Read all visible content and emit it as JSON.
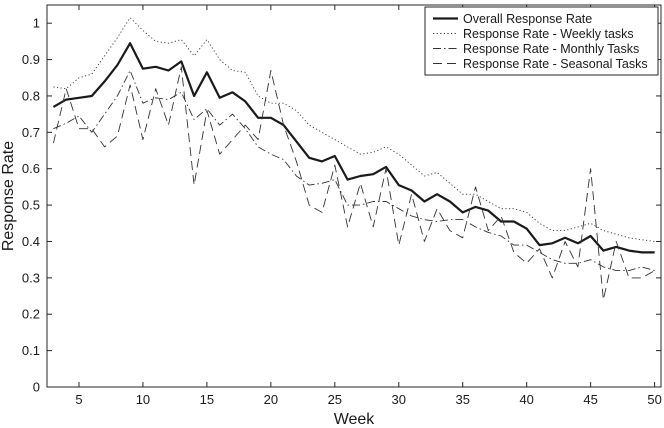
{
  "chart_data": {
    "type": "line",
    "xlabel": "Week",
    "ylabel": "Response Rate",
    "xlim": [
      2.5,
      50.5
    ],
    "ylim": [
      0,
      1.05
    ],
    "xticks": [
      5,
      10,
      15,
      20,
      25,
      30,
      35,
      40,
      45,
      50
    ],
    "yticks": [
      0,
      0.1,
      0.2,
      0.3,
      0.4,
      0.5,
      0.6,
      0.7,
      0.8,
      0.9,
      1
    ],
    "ytick_labels": [
      "0",
      "0.1",
      "0.2",
      "0.3",
      "0.4",
      "0.5",
      "0.6",
      "0.7",
      "0.8",
      "0.9",
      "1"
    ],
    "grid": false,
    "legend_position": "top-right",
    "x": [
      3,
      4,
      5,
      6,
      7,
      8,
      9,
      10,
      11,
      12,
      13,
      14,
      15,
      16,
      17,
      18,
      19,
      20,
      21,
      22,
      23,
      24,
      25,
      26,
      27,
      28,
      29,
      30,
      31,
      32,
      33,
      34,
      35,
      36,
      37,
      38,
      39,
      40,
      41,
      42,
      43,
      44,
      45,
      46,
      47,
      48,
      49,
      50
    ],
    "series": [
      {
        "name": "Overall Response Rate",
        "style": "solid",
        "color": "#1a1a1a",
        "values": [
          0.77,
          0.79,
          0.795,
          0.8,
          0.84,
          0.885,
          0.945,
          0.875,
          0.88,
          0.87,
          0.895,
          0.8,
          0.865,
          0.795,
          0.81,
          0.785,
          0.74,
          0.74,
          0.72,
          0.675,
          0.63,
          0.62,
          0.635,
          0.57,
          0.58,
          0.585,
          0.605,
          0.555,
          0.54,
          0.51,
          0.53,
          0.51,
          0.48,
          0.495,
          0.485,
          0.455,
          0.455,
          0.435,
          0.39,
          0.395,
          0.41,
          0.395,
          0.415,
          0.375,
          0.385,
          0.375,
          0.37,
          0.37
        ]
      },
      {
        "name": "Response Rate - Weekly tasks",
        "style": "dotted",
        "color": "#333333",
        "values": [
          0.825,
          0.82,
          0.85,
          0.86,
          0.91,
          0.96,
          1.015,
          0.98,
          0.95,
          0.945,
          0.955,
          0.91,
          0.955,
          0.9,
          0.87,
          0.865,
          0.8,
          0.78,
          0.78,
          0.76,
          0.72,
          0.7,
          0.68,
          0.66,
          0.64,
          0.645,
          0.66,
          0.64,
          0.61,
          0.58,
          0.59,
          0.56,
          0.53,
          0.53,
          0.51,
          0.49,
          0.49,
          0.48,
          0.45,
          0.43,
          0.43,
          0.44,
          0.45,
          0.43,
          0.42,
          0.41,
          0.405,
          0.4
        ]
      },
      {
        "name": "Response Rate - Monthly Tasks",
        "style": "dashdot",
        "color": "#333333",
        "values": [
          0.71,
          0.725,
          0.745,
          0.7,
          0.75,
          0.8,
          0.87,
          0.78,
          0.795,
          0.79,
          0.81,
          0.735,
          0.765,
          0.72,
          0.75,
          0.71,
          0.66,
          0.64,
          0.625,
          0.58,
          0.555,
          0.56,
          0.57,
          0.5,
          0.5,
          0.51,
          0.51,
          0.49,
          0.47,
          0.46,
          0.455,
          0.46,
          0.46,
          0.44,
          0.425,
          0.415,
          0.39,
          0.39,
          0.37,
          0.35,
          0.34,
          0.34,
          0.35,
          0.33,
          0.32,
          0.32,
          0.33,
          0.32
        ]
      },
      {
        "name": "Response Rate - Seasonal Tasks",
        "style": "dashed",
        "color": "#333333",
        "values": [
          0.67,
          0.82,
          0.71,
          0.71,
          0.66,
          0.69,
          0.83,
          0.68,
          0.82,
          0.72,
          0.88,
          0.555,
          0.76,
          0.64,
          0.68,
          0.72,
          0.68,
          0.87,
          0.72,
          0.62,
          0.5,
          0.48,
          0.61,
          0.44,
          0.56,
          0.44,
          0.6,
          0.39,
          0.53,
          0.4,
          0.49,
          0.43,
          0.41,
          0.55,
          0.43,
          0.47,
          0.37,
          0.34,
          0.38,
          0.3,
          0.4,
          0.33,
          0.6,
          0.24,
          0.4,
          0.3,
          0.3,
          0.32
        ]
      }
    ]
  }
}
